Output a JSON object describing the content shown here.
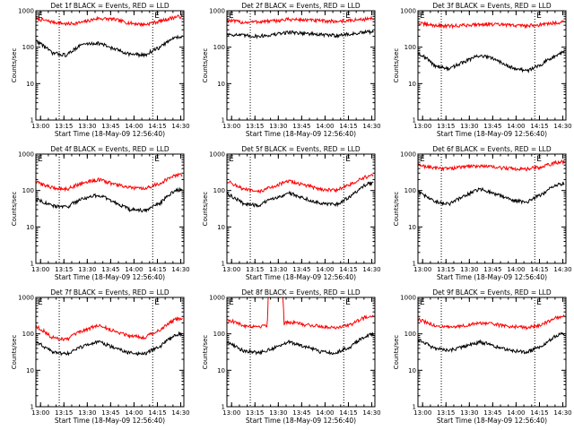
{
  "chart_data": [
    {
      "type": "line",
      "title": "Det 1f BLACK = Events, RED = LLD",
      "xlabel": "Start Time (18-May-09 12:56:40)",
      "ylabel": "Counts/sec",
      "y_scale": "log",
      "ylim": [
        1,
        1000
      ],
      "ytick_labels": [
        "1",
        "10",
        "100",
        "1000"
      ],
      "xlim": [
        0,
        95
      ],
      "xtick_labels": [
        "13:00",
        "13:15",
        "13:30",
        "13:45",
        "14:00",
        "14:15",
        "14:30"
      ],
      "markers": [
        {
          "label": "E",
          "x_min": 0
        },
        {
          "label": "E",
          "x_min": 75
        }
      ],
      "dotted_lines_min": [
        15,
        75
      ],
      "series": [
        {
          "color": "#ff0000",
          "x": [
            0,
            10,
            20,
            30,
            40,
            50,
            60,
            70,
            80,
            90,
            94
          ],
          "values": [
            600,
            500,
            430,
            480,
            620,
            580,
            460,
            420,
            520,
            680,
            700
          ]
        },
        {
          "color": "#000000",
          "x": [
            0,
            10,
            20,
            30,
            40,
            50,
            60,
            70,
            80,
            90,
            94
          ],
          "values": [
            150,
            70,
            60,
            120,
            130,
            90,
            65,
            60,
            100,
            190,
            200
          ]
        }
      ]
    },
    {
      "type": "line",
      "title": "Det 2f BLACK = Events, RED = LLD",
      "xlabel": "Start Time (18-May-09 12:56:40)",
      "ylabel": "Counts/sec",
      "y_scale": "log",
      "ylim": [
        1,
        1000
      ],
      "ytick_labels": [
        "1",
        "10",
        "100",
        "1000"
      ],
      "xlim": [
        0,
        95
      ],
      "xtick_labels": [
        "13:00",
        "13:15",
        "13:30",
        "13:45",
        "14:00",
        "14:15",
        "14:30"
      ],
      "markers": [
        {
          "label": "E",
          "x_min": 0
        },
        {
          "label": "E",
          "x_min": 75
        }
      ],
      "dotted_lines_min": [
        15,
        75
      ],
      "series": [
        {
          "color": "#ff0000",
          "x": [
            0,
            10,
            20,
            30,
            40,
            50,
            60,
            70,
            80,
            90,
            94
          ],
          "values": [
            550,
            480,
            500,
            520,
            580,
            560,
            530,
            510,
            540,
            600,
            620
          ]
        },
        {
          "color": "#000000",
          "x": [
            0,
            10,
            20,
            30,
            40,
            50,
            60,
            70,
            80,
            90,
            94
          ],
          "values": [
            230,
            210,
            200,
            220,
            260,
            240,
            220,
            210,
            230,
            260,
            270
          ]
        }
      ]
    },
    {
      "type": "line",
      "title": "Det 3f BLACK = Events, RED = LLD",
      "xlabel": "Start Time (18-May-09 12:56:40)",
      "ylabel": "Counts/sec",
      "y_scale": "log",
      "ylim": [
        1,
        1000
      ],
      "ytick_labels": [
        "1",
        "10",
        "100",
        "1000"
      ],
      "xlim": [
        0,
        95
      ],
      "xtick_labels": [
        "13:00",
        "13:15",
        "13:30",
        "13:45",
        "14:00",
        "14:15",
        "14:30"
      ],
      "markers": [
        {
          "label": "E",
          "x_min": 0
        },
        {
          "label": "E",
          "x_min": 75
        }
      ],
      "dotted_lines_min": [
        15,
        75
      ],
      "series": [
        {
          "color": "#ff0000",
          "x": [
            0,
            10,
            20,
            30,
            40,
            50,
            60,
            70,
            80,
            90,
            94
          ],
          "values": [
            450,
            400,
            380,
            400,
            430,
            420,
            400,
            390,
            420,
            480,
            500
          ]
        },
        {
          "color": "#000000",
          "x": [
            0,
            10,
            20,
            30,
            40,
            50,
            60,
            70,
            80,
            90,
            94
          ],
          "values": [
            70,
            32,
            25,
            40,
            60,
            45,
            28,
            22,
            35,
            65,
            80
          ]
        }
      ]
    },
    {
      "type": "line",
      "title": "Det 4f BLACK = Events, RED = LLD",
      "xlabel": "Start Time (18-May-09 12:56:40)",
      "ylabel": "Counts/sec",
      "y_scale": "log",
      "ylim": [
        1,
        1000
      ],
      "ytick_labels": [
        "1",
        "10",
        "100",
        "1000"
      ],
      "xlim": [
        0,
        95
      ],
      "xtick_labels": [
        "13:00",
        "13:15",
        "13:30",
        "13:45",
        "14:00",
        "14:15",
        "14:30"
      ],
      "markers": [
        {
          "label": "E",
          "x_min": 0
        },
        {
          "label": "E",
          "x_min": 75
        }
      ],
      "dotted_lines_min": [
        15,
        75
      ],
      "series": [
        {
          "color": "#ff0000",
          "x": [
            0,
            10,
            20,
            30,
            40,
            50,
            60,
            70,
            80,
            90,
            94
          ],
          "values": [
            170,
            120,
            110,
            160,
            200,
            150,
            120,
            110,
            160,
            260,
            280
          ]
        },
        {
          "color": "#000000",
          "x": [
            0,
            10,
            20,
            30,
            40,
            50,
            60,
            70,
            80,
            90,
            94
          ],
          "values": [
            60,
            38,
            35,
            60,
            75,
            48,
            30,
            28,
            45,
            100,
            110
          ]
        }
      ]
    },
    {
      "type": "line",
      "title": "Det 5f BLACK = Events, RED = LLD",
      "xlabel": "Start Time (18-May-09 12:56:40)",
      "ylabel": "Counts/sec",
      "y_scale": "log",
      "ylim": [
        1,
        1000
      ],
      "ytick_labels": [
        "1",
        "10",
        "100",
        "1000"
      ],
      "xlim": [
        0,
        95
      ],
      "xtick_labels": [
        "13:00",
        "13:15",
        "13:30",
        "13:45",
        "14:00",
        "14:15",
        "14:30"
      ],
      "markers": [
        {
          "label": "E",
          "x_min": 0
        },
        {
          "label": "E",
          "x_min": 75
        }
      ],
      "dotted_lines_min": [
        15,
        75
      ],
      "series": [
        {
          "color": "#ff0000",
          "x": [
            0,
            10,
            20,
            30,
            40,
            50,
            60,
            70,
            80,
            90,
            94
          ],
          "values": [
            180,
            110,
            90,
            130,
            180,
            140,
            110,
            100,
            150,
            240,
            260
          ]
        },
        {
          "color": "#000000",
          "x": [
            0,
            10,
            20,
            30,
            40,
            50,
            60,
            70,
            80,
            90,
            94
          ],
          "values": [
            80,
            45,
            38,
            60,
            85,
            60,
            45,
            40,
            70,
            150,
            160
          ]
        }
      ]
    },
    {
      "type": "line",
      "title": "Det 6f BLACK = Events, RED = LLD",
      "xlabel": "Start Time (18-May-09 12:56:40)",
      "ylabel": "Counts/sec",
      "y_scale": "log",
      "ylim": [
        1,
        1000
      ],
      "ytick_labels": [
        "1",
        "10",
        "100",
        "1000"
      ],
      "xlim": [
        0,
        95
      ],
      "xtick_labels": [
        "13:00",
        "13:15",
        "13:30",
        "13:45",
        "14:00",
        "14:15",
        "14:30"
      ],
      "markers": [
        {
          "label": "E",
          "x_min": 0
        },
        {
          "label": "E",
          "x_min": 75
        }
      ],
      "dotted_lines_min": [
        15,
        75
      ],
      "series": [
        {
          "color": "#ff0000",
          "x": [
            0,
            10,
            20,
            30,
            40,
            50,
            60,
            70,
            80,
            90,
            94
          ],
          "values": [
            500,
            420,
            400,
            450,
            480,
            430,
            400,
            390,
            450,
            600,
            620
          ]
        },
        {
          "color": "#000000",
          "x": [
            0,
            10,
            20,
            30,
            40,
            50,
            60,
            70,
            80,
            90,
            94
          ],
          "values": [
            90,
            50,
            42,
            70,
            110,
            80,
            55,
            48,
            80,
            150,
            160
          ]
        }
      ]
    },
    {
      "type": "line",
      "title": "Det 7f BLACK = Events, RED = LLD",
      "xlabel": "Start Time (18-May-09 12:56:40)",
      "ylabel": "Counts/sec",
      "y_scale": "log",
      "ylim": [
        1,
        1000
      ],
      "ytick_labels": [
        "1",
        "10",
        "100",
        "1000"
      ],
      "xlim": [
        0,
        95
      ],
      "xtick_labels": [
        "13:00",
        "13:15",
        "13:30",
        "13:45",
        "14:00",
        "14:15",
        "14:30"
      ],
      "markers": [
        {
          "label": "E",
          "x_min": 0
        },
        {
          "label": "E",
          "x_min": 75
        }
      ],
      "dotted_lines_min": [
        15,
        75
      ],
      "series": [
        {
          "color": "#ff0000",
          "x": [
            0,
            10,
            20,
            30,
            40,
            50,
            60,
            70,
            80,
            90,
            94
          ],
          "values": [
            160,
            80,
            70,
            120,
            170,
            120,
            90,
            80,
            130,
            250,
            270
          ]
        },
        {
          "color": "#000000",
          "x": [
            0,
            10,
            20,
            30,
            40,
            50,
            60,
            70,
            80,
            90,
            94
          ],
          "values": [
            60,
            32,
            28,
            45,
            60,
            42,
            30,
            28,
            45,
            95,
            100
          ]
        }
      ]
    },
    {
      "type": "line",
      "title": "Det 8f BLACK = Events, RED = LLD",
      "xlabel": "Start Time (18-May-09 12:56:40)",
      "ylabel": "Counts/sec",
      "y_scale": "log",
      "ylim": [
        1,
        1000
      ],
      "ytick_labels": [
        "1",
        "10",
        "100",
        "1000"
      ],
      "xlim": [
        0,
        95
      ],
      "xtick_labels": [
        "13:00",
        "13:15",
        "13:30",
        "13:45",
        "14:00",
        "14:15",
        "14:30"
      ],
      "markers": [
        {
          "label": "E",
          "x_min": 0
        },
        {
          "label": "E",
          "x_min": 75
        }
      ],
      "dotted_lines_min": [
        15,
        75
      ],
      "series": [
        {
          "color": "#ff0000",
          "x": [
            0,
            10,
            20,
            25,
            26,
            26.5,
            30,
            35,
            36,
            36.5,
            40,
            50,
            60,
            70,
            80,
            90,
            94
          ],
          "values": [
            250,
            170,
            160,
            170,
            180,
            1000,
            1000,
            1000,
            1000,
            200,
            210,
            180,
            160,
            150,
            180,
            300,
            320
          ]
        },
        {
          "color": "#000000",
          "x": [
            0,
            10,
            20,
            30,
            40,
            50,
            60,
            70,
            80,
            90,
            94
          ],
          "values": [
            60,
            35,
            30,
            40,
            60,
            45,
            32,
            30,
            45,
            90,
            95
          ]
        }
      ]
    },
    {
      "type": "line",
      "title": "Det 9f BLACK = Events, RED = LLD",
      "xlabel": "Start Time (18-May-09 12:56:40)",
      "ylabel": "Counts/sec",
      "y_scale": "log",
      "ylim": [
        1,
        1000
      ],
      "ytick_labels": [
        "1",
        "10",
        "100",
        "1000"
      ],
      "xlim": [
        0,
        95
      ],
      "xtick_labels": [
        "13:00",
        "13:15",
        "13:30",
        "13:45",
        "14:00",
        "14:15",
        "14:30"
      ],
      "markers": [
        {
          "label": "E",
          "x_min": 0
        },
        {
          "label": "E",
          "x_min": 75
        }
      ],
      "dotted_lines_min": [
        15,
        75
      ],
      "series": [
        {
          "color": "#ff0000",
          "x": [
            0,
            10,
            20,
            30,
            40,
            50,
            60,
            70,
            80,
            90,
            94
          ],
          "values": [
            250,
            170,
            150,
            170,
            200,
            180,
            160,
            150,
            180,
            290,
            300
          ]
        },
        {
          "color": "#000000",
          "x": [
            0,
            10,
            20,
            30,
            40,
            50,
            60,
            70,
            80,
            90,
            94
          ],
          "values": [
            70,
            40,
            35,
            45,
            60,
            45,
            35,
            32,
            45,
            95,
            100
          ]
        }
      ]
    }
  ]
}
